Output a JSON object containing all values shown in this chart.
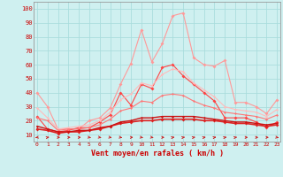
{
  "xlabel": "Vent moyen/en rafales ( km/h )",
  "background_color": "#cff0f0",
  "grid_color": "#aadddd",
  "x_ticks": [
    0,
    1,
    2,
    3,
    4,
    5,
    6,
    7,
    8,
    9,
    10,
    11,
    12,
    13,
    14,
    15,
    16,
    17,
    18,
    19,
    20,
    21,
    22,
    23
  ],
  "y_ticks": [
    10,
    20,
    30,
    40,
    50,
    60,
    70,
    80,
    90,
    100
  ],
  "ylim": [
    5,
    105
  ],
  "xlim": [
    -0.3,
    23.3
  ],
  "series": [
    {
      "color": "#ff9999",
      "linewidth": 0.8,
      "marker": "D",
      "markersize": 2,
      "values": [
        40,
        30,
        14,
        14,
        14,
        20,
        22,
        29,
        46,
        61,
        85,
        62,
        75,
        95,
        97,
        65,
        60,
        59,
        63,
        33,
        33,
        30,
        25,
        35
      ]
    },
    {
      "color": "#ff4444",
      "linewidth": 0.8,
      "marker": "D",
      "markersize": 2,
      "values": [
        23,
        14,
        12,
        13,
        15,
        15,
        19,
        24,
        40,
        31,
        46,
        43,
        58,
        60,
        52,
        46,
        40,
        34,
        22,
        22,
        22,
        19,
        15,
        19
      ]
    },
    {
      "color": "#ffbbbb",
      "linewidth": 0.8,
      "marker": "D",
      "markersize": 1.5,
      "values": [
        29,
        22,
        14,
        15,
        16,
        17,
        20,
        26,
        35,
        39,
        47,
        45,
        53,
        57,
        55,
        47,
        42,
        37,
        30,
        28,
        27,
        26,
        23,
        28
      ]
    },
    {
      "color": "#dd2222",
      "linewidth": 1.2,
      "marker": "D",
      "markersize": 2,
      "values": [
        14,
        13,
        11,
        12,
        12,
        13,
        14,
        16,
        18,
        19,
        20,
        20,
        21,
        21,
        21,
        21,
        20,
        20,
        19,
        18,
        18,
        17,
        16,
        17
      ]
    },
    {
      "color": "#ff7777",
      "linewidth": 0.8,
      "marker": "D",
      "markersize": 1.5,
      "values": [
        22,
        20,
        13,
        14,
        14,
        15,
        17,
        21,
        27,
        29,
        34,
        33,
        38,
        39,
        38,
        34,
        31,
        29,
        26,
        25,
        24,
        23,
        21,
        24
      ]
    },
    {
      "color": "#cc1111",
      "linewidth": 1.0,
      "marker": "D",
      "markersize": 1.5,
      "values": [
        16,
        14,
        12,
        12,
        13,
        13,
        15,
        16,
        19,
        20,
        22,
        22,
        23,
        23,
        23,
        23,
        22,
        21,
        20,
        19,
        19,
        18,
        17,
        18
      ]
    }
  ],
  "wind_symbols": {
    "x": [
      0,
      1,
      2,
      3,
      4,
      5,
      6,
      7,
      8,
      9,
      10,
      11,
      12,
      13,
      14,
      15,
      16,
      17,
      18,
      19,
      20,
      21,
      22,
      23
    ],
    "y": 8,
    "color": "#cc2222",
    "directions": [
      225,
      45,
      90,
      90,
      90,
      135,
      135,
      135,
      135,
      90,
      135,
      135,
      90,
      45,
      45,
      45,
      45,
      45,
      45,
      45,
      90,
      90,
      90,
      135
    ]
  }
}
